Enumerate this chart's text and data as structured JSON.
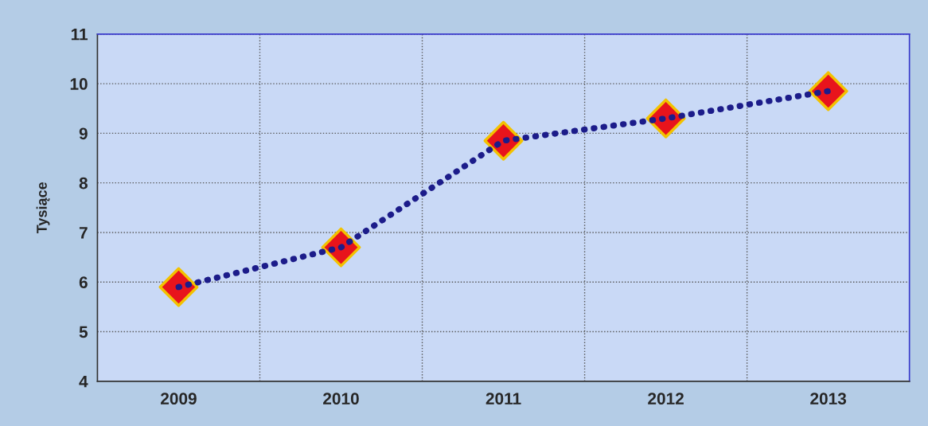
{
  "chart_data": {
    "type": "line",
    "ylabel": "Tysiące",
    "categories": [
      "2009",
      "2010",
      "2011",
      "2012",
      "2013"
    ],
    "series": [
      {
        "color": "#1c1c8a",
        "values": [
          5.9,
          6.7,
          8.85,
          9.3,
          9.85
        ]
      },
      {
        "type": "scatter",
        "marker": "diamond",
        "color": "#e8141c",
        "values": [
          5.9,
          6.7,
          8.85,
          9.3,
          9.85
        ]
      }
    ],
    "ylim": [
      4,
      11
    ],
    "yticks": [
      4,
      5,
      6,
      7,
      8,
      9,
      10,
      11
    ],
    "grid": true,
    "line_style": "dotted"
  }
}
